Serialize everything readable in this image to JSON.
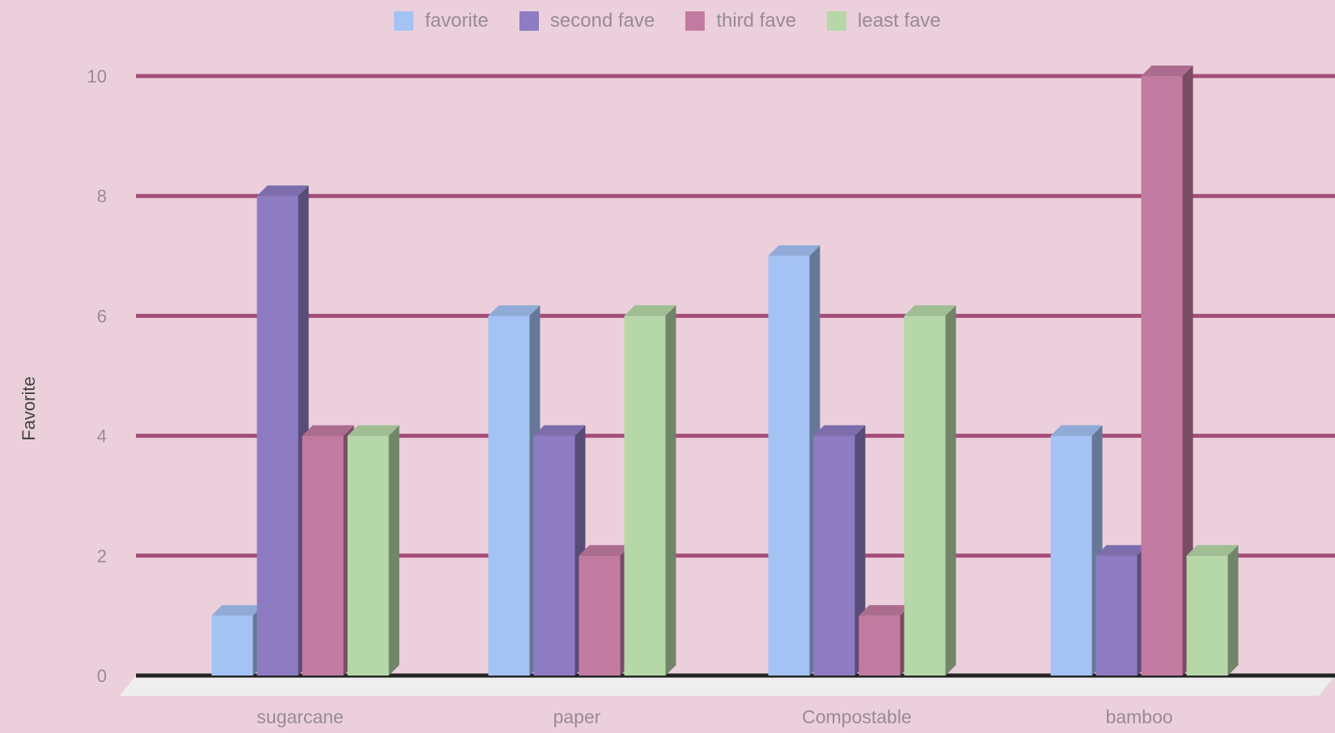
{
  "chart_data": {
    "type": "bar",
    "title": "",
    "xlabel": "",
    "ylabel": "Favorite",
    "ylim": [
      0,
      10
    ],
    "yticks": [
      0,
      2,
      4,
      6,
      8,
      10
    ],
    "grid": true,
    "legend_position": "top",
    "style": "3d",
    "categories": [
      "sugarcane",
      "paper",
      "Compostable",
      "bamboo"
    ],
    "series": [
      {
        "name": "favorite",
        "color": "#a4c2f4",
        "values": [
          1,
          6,
          7,
          4
        ]
      },
      {
        "name": "second fave",
        "color": "#8e7cc3",
        "values": [
          8,
          4,
          4,
          2
        ]
      },
      {
        "name": "third fave",
        "color": "#c27ba0",
        "values": [
          4,
          2,
          1,
          10
        ]
      },
      {
        "name": "least fave",
        "color": "#b6d7a8",
        "values": [
          4,
          6,
          6,
          2
        ]
      }
    ],
    "gridline_color": "#a64d79",
    "background": "#ebd0dc"
  }
}
